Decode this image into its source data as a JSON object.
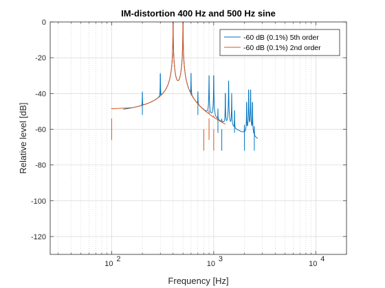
{
  "chart_data": {
    "type": "line",
    "title": "IM-distortion 400 Hz and 500 Hz sine",
    "xlabel": "Frequency [Hz]",
    "ylabel": "Relative level [dB]",
    "xscale": "log",
    "xlim": [
      25,
      20000
    ],
    "ylim": [
      -130,
      0
    ],
    "yticks": [
      0,
      -20,
      -40,
      -60,
      -80,
      -100,
      -120
    ],
    "yticklabels": [
      "0",
      "-20",
      "-40",
      "-60",
      "-80",
      "-100",
      "-120"
    ],
    "xticks": [
      100,
      1000,
      10000
    ],
    "xticklabels": [
      {
        "base": "10",
        "exp": "2"
      },
      {
        "base": "10",
        "exp": "3"
      },
      {
        "base": "10",
        "exp": "4"
      }
    ],
    "grid": true,
    "minor_grid": true,
    "legend_position": "top-right",
    "series": [
      {
        "name": "-60 dB (0.1%) 5th order",
        "color": "#0072BD",
        "peaks": [
          [
            200,
            -40
          ],
          [
            300,
            -29
          ],
          [
            400,
            0
          ],
          [
            500,
            0
          ],
          [
            600,
            -29
          ],
          [
            700,
            -40
          ],
          [
            900,
            -30
          ],
          [
            1000,
            -30
          ],
          [
            1100,
            -50
          ],
          [
            1200,
            -60
          ],
          [
            1300,
            -40
          ],
          [
            1400,
            -33
          ],
          [
            1500,
            -40
          ],
          [
            1600,
            -50
          ],
          [
            2000,
            -60
          ],
          [
            2100,
            -45
          ],
          [
            2200,
            -38
          ],
          [
            2300,
            -38
          ],
          [
            2400,
            -45
          ],
          [
            2500,
            -60
          ]
        ],
        "curve_range": [
          130,
          2700
        ]
      },
      {
        "name": "-60 dB (0.1%) 2nd order",
        "color": "#D95319",
        "peaks": [
          [
            100,
            -54
          ],
          [
            400,
            0
          ],
          [
            500,
            0
          ],
          [
            800,
            -60
          ],
          [
            900,
            -54
          ],
          [
            1000,
            -60
          ]
        ],
        "curve_range": [
          160,
          1300
        ]
      }
    ]
  }
}
